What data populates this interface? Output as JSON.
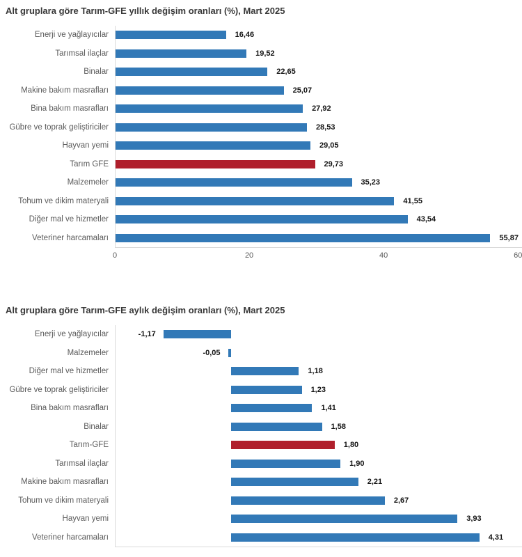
{
  "colors": {
    "bar_blue": "#3279B7",
    "bar_red": "#B01F2C",
    "axis_line": "#D9D9D9",
    "category_label": "#5A5A5A",
    "value_label": "#141414",
    "title": "#383838",
    "tick_label": "#5A5A5A",
    "background": "#FFFFFF"
  },
  "chart_data": [
    {
      "type": "bar",
      "orientation": "horizontal",
      "title": "Alt gruplara göre Tarım-GFE yıllık değişim oranları (%), Mart 2025",
      "categories": [
        "Enerji  ve yağlayıcılar",
        "Tarımsal ilaçlar",
        "Binalar",
        "Makine bakım masrafları",
        "Bina bakım masrafları",
        "Gübre ve toprak geliştiriciler",
        "Hayvan yemi",
        "Tarım GFE",
        "Malzemeler",
        "Tohum ve dikim materyali",
        "Diğer mal ve hizmetler",
        "Veteriner harcamaları"
      ],
      "values": [
        16.46,
        19.52,
        22.65,
        25.07,
        27.92,
        28.53,
        29.05,
        29.73,
        35.23,
        41.55,
        43.54,
        55.87
      ],
      "value_labels": [
        "16,46",
        "19,52",
        "22,65",
        "25,07",
        "27,92",
        "28,53",
        "29,05",
        "29,73",
        "35,23",
        "41,55",
        "43,54",
        "55,87"
      ],
      "highlight_index": 7,
      "xlim": [
        0,
        60.6
      ],
      "x_ticks": [
        0,
        20,
        40,
        60
      ],
      "x_tick_labels": [
        "0",
        "20",
        "40",
        "60"
      ],
      "grid": false,
      "legend": "none",
      "xlabel": "",
      "ylabel": ""
    },
    {
      "type": "bar",
      "orientation": "horizontal",
      "title": "Alt gruplara göre Tarım-GFE aylık değişim oranları (%), Mart 2025",
      "categories": [
        "Enerji  ve yağlayıcılar",
        "Malzemeler",
        "Diğer mal ve hizmetler",
        "Gübre ve toprak geliştiriciler",
        "Bina bakım masrafları",
        "Binalar",
        "Tarım-GFE",
        "Tarımsal ilaçlar",
        "Makine bakım masrafları",
        "Tohum ve dikim materyali",
        "Hayvan yemi",
        "Veteriner harcamaları"
      ],
      "values": [
        -1.17,
        -0.05,
        1.18,
        1.23,
        1.41,
        1.58,
        1.8,
        1.9,
        2.21,
        2.67,
        3.93,
        4.31
      ],
      "value_labels": [
        "-1,17",
        "-0,05",
        "1,18",
        "1,23",
        "1,41",
        "1,58",
        "1,80",
        "1,90",
        "2,21",
        "2,67",
        "3,93",
        "4,31"
      ],
      "highlight_index": 6,
      "xlim": [
        -2.0,
        5.05
      ],
      "x_ticks": [],
      "x_tick_labels": [],
      "grid": false,
      "legend": "none",
      "xlabel": "",
      "ylabel": ""
    }
  ]
}
